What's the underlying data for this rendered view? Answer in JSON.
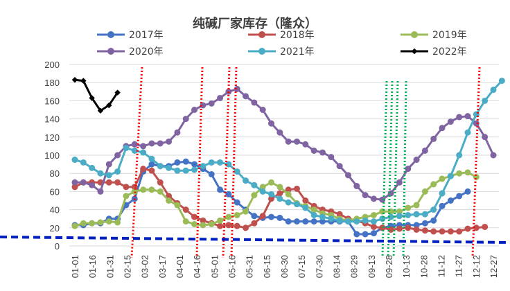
{
  "chart_data": {
    "type": "line",
    "title": "纯碱厂家库存（隆众）",
    "ylim": [
      0,
      200
    ],
    "yticks": [
      0,
      20,
      40,
      60,
      80,
      100,
      120,
      140,
      160,
      180,
      200
    ],
    "x_tick_labels": [
      "01-01",
      "01-16",
      "01-31",
      "02-15",
      "03-02",
      "03-17",
      "04-01",
      "04-16",
      "05-01",
      "05-16",
      "05-31",
      "06-15",
      "06-30",
      "07-15",
      "07-30",
      "08-14",
      "08-29",
      "09-13",
      "09-28",
      "10-13",
      "10-28",
      "11-12",
      "11-27",
      "12-12",
      "12-27"
    ],
    "grid": "horizontal",
    "legend_position": "top",
    "series": [
      {
        "name": "2017年",
        "color": "#4472C4",
        "marker": "circle",
        "values": [
          23,
          23,
          25,
          25,
          30,
          30,
          45,
          52,
          82,
          90,
          88,
          88,
          92,
          93,
          90,
          85,
          79,
          62,
          57,
          48,
          40,
          33,
          31,
          32,
          31,
          27,
          27,
          27,
          27,
          27,
          27,
          27,
          27,
          13,
          13,
          14,
          20,
          22,
          23,
          23,
          23,
          25,
          28,
          44,
          50,
          55,
          60
        ]
      },
      {
        "name": "2018年",
        "color": "#C0504D",
        "marker": "circle",
        "values": [
          65,
          70,
          70,
          70,
          70,
          70,
          65,
          65,
          85,
          83,
          70,
          55,
          47,
          40,
          32,
          28,
          25,
          22,
          23,
          22,
          20,
          25,
          33,
          52,
          58,
          62,
          63,
          50,
          44,
          40,
          38,
          35,
          30,
          28,
          25,
          21,
          20,
          18,
          19,
          20,
          18,
          17,
          16,
          16,
          16,
          16,
          19,
          20,
          21
        ]
      },
      {
        "name": "2019年",
        "color": "#9BBB59",
        "marker": "circle",
        "values": [
          22,
          25,
          25,
          26,
          27,
          26,
          55,
          60,
          62,
          62,
          60,
          50,
          45,
          27,
          24,
          23,
          24,
          28,
          32,
          34,
          38,
          56,
          65,
          70,
          65,
          57,
          47,
          44,
          40,
          36,
          34,
          30,
          28,
          30,
          32,
          34,
          38,
          38,
          38,
          42,
          45,
          60,
          68,
          74,
          77,
          80,
          81,
          76
        ]
      },
      {
        "name": "2020年",
        "color": "#8064A2",
        "marker": "circle",
        "values": [
          70,
          70,
          67,
          60,
          90,
          100,
          110,
          112,
          110,
          113,
          113,
          115,
          125,
          140,
          150,
          155,
          157,
          163,
          170,
          173,
          165,
          158,
          150,
          135,
          125,
          115,
          115,
          112,
          105,
          103,
          98,
          88,
          78,
          66,
          56,
          52,
          51,
          58,
          70,
          85,
          95,
          105,
          118,
          130,
          137,
          142,
          143,
          135,
          120,
          100
        ]
      },
      {
        "name": "2021年",
        "color": "#4BACC6",
        "marker": "circle",
        "values": [
          95,
          92,
          86,
          80,
          78,
          82,
          108,
          105,
          103,
          96,
          88,
          86,
          83,
          83,
          84,
          88,
          92,
          92,
          90,
          82,
          72,
          67,
          60,
          57,
          52,
          48,
          46,
          42,
          34,
          32,
          30,
          28,
          27,
          27,
          28,
          27,
          30,
          32,
          33,
          34,
          35,
          35,
          40,
          58,
          77,
          100,
          125,
          145,
          160,
          172,
          182
        ]
      },
      {
        "name": "2022年",
        "color": "#000000",
        "marker": "diamond",
        "values": [
          183,
          182,
          163,
          149,
          155,
          169
        ]
      }
    ]
  }
}
